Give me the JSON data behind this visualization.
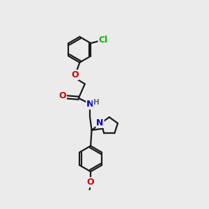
{
  "bg_color": "#ebebeb",
  "bond_color": "#1a1a1a",
  "atom_colors": {
    "O": "#cc0000",
    "N": "#0000cc",
    "Cl": "#00bb00",
    "H": "#666666",
    "C": "#1a1a1a"
  },
  "line_width": 1.6,
  "font_size": 8.5
}
